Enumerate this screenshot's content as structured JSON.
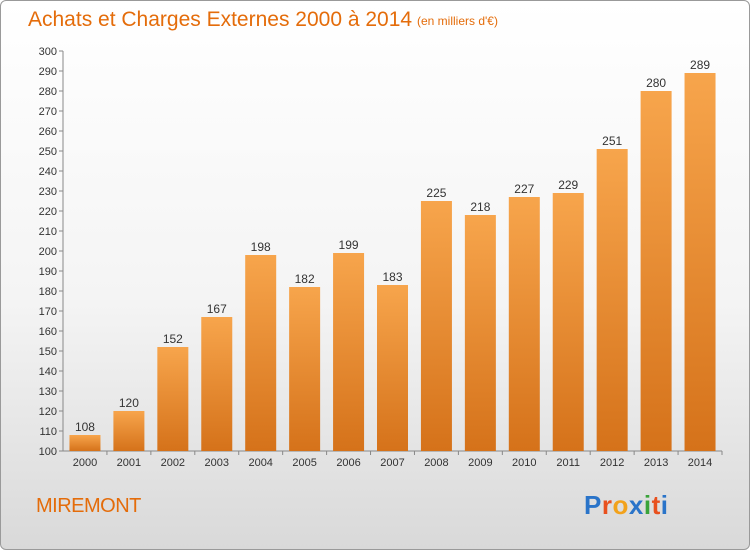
{
  "header": {
    "title": "Achats et Charges Externes 2000 à 2014",
    "subtitle": "(en milliers d'€)"
  },
  "footer": {
    "commune": "MIREMONT",
    "logo_letters": [
      "P",
      "r",
      "o",
      "x",
      "i",
      "t",
      "i"
    ],
    "logo_colors": [
      "#2a74c9",
      "#e8501e",
      "#f2a21b",
      "#2a74c9",
      "#3aa33a",
      "#e8501e",
      "#2a74c9"
    ]
  },
  "colors": {
    "accent": "#e46c0a",
    "bar_light": "#f7a54c",
    "bar_dark": "#d5721a"
  },
  "chart_data": {
    "type": "bar",
    "title": "Achats et Charges Externes 2000 à 2014",
    "subtitle": "(en milliers d'€)",
    "categories": [
      "2000",
      "2001",
      "2002",
      "2003",
      "2004",
      "2005",
      "2006",
      "2007",
      "2008",
      "2009",
      "2010",
      "2011",
      "2012",
      "2013",
      "2014"
    ],
    "values": [
      108,
      120,
      152,
      167,
      198,
      182,
      199,
      183,
      225,
      218,
      227,
      229,
      251,
      280,
      289
    ],
    "ylim": [
      100,
      300
    ],
    "ytick_step": 10,
    "grid": false
  }
}
